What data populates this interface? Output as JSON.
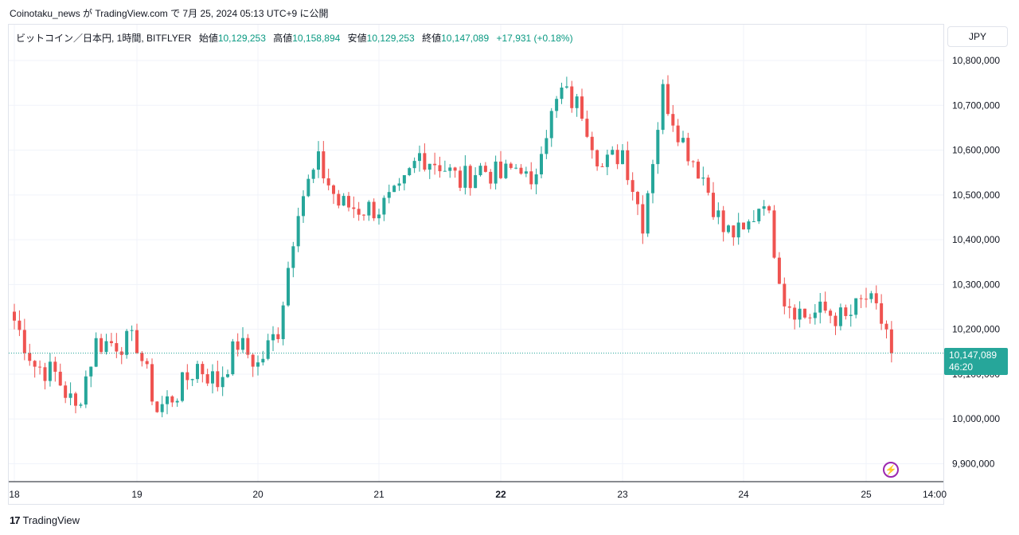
{
  "header": {
    "publish_line": "Coinotaku_news が TradingView.com で 7月 25, 2024 05:13 UTC+9 に公開"
  },
  "legend": {
    "symbol": "ビットコイン／日本円, 1時間, BITFLYER",
    "open_label": "始値",
    "open_value": "10,129,253",
    "high_label": "高値",
    "high_value": "10,158,894",
    "low_label": "安値",
    "low_value": "10,129,253",
    "close_label": "終値",
    "close_value": "10,147,089",
    "change": "+17,931 (+0.18%)"
  },
  "currency": "JPY",
  "last_price": {
    "value": "10,147,089",
    "countdown": "46:20"
  },
  "brand": {
    "name": "TradingView",
    "logo_text": "17"
  },
  "colors": {
    "up": "#26a69a",
    "down": "#ef5350",
    "grid": "#f0f3fa",
    "accent": "#9c27b0"
  },
  "icons": {
    "lightning": "lightning-icon"
  },
  "chart_data": {
    "type": "candlestick",
    "x_tick_labels": [
      "18",
      "19",
      "20",
      "21",
      "22",
      "23",
      "24",
      "25",
      "14:00"
    ],
    "y_tick_labels": [
      "9,900,000",
      "10,000,000",
      "10,100,000",
      "10,200,000",
      "10,300,000",
      "10,400,000",
      "10,500,000",
      "10,600,000",
      "10,700,000",
      "10,800,000"
    ],
    "ylim": [
      9860000,
      10880000
    ],
    "last_price": 10147089,
    "grid": true,
    "close_waypoints": [
      [
        "18 00:00",
        10220000
      ],
      [
        "18 04:00",
        10120000
      ],
      [
        "18 08:00",
        10100000
      ],
      [
        "18 12:00",
        10020000
      ],
      [
        "18 16:00",
        10170000
      ],
      [
        "18 20:00",
        10170000
      ],
      [
        "19 00:00",
        10170000
      ],
      [
        "19 04:00",
        10020000
      ],
      [
        "19 08:00",
        10060000
      ],
      [
        "19 12:00",
        10120000
      ],
      [
        "19 16:00",
        10080000
      ],
      [
        "19 20:00",
        10170000
      ],
      [
        "20 00:00",
        10120000
      ],
      [
        "20 04:00",
        10200000
      ],
      [
        "20 08:00",
        10480000
      ],
      [
        "20 12:00",
        10570000
      ],
      [
        "20 16:00",
        10480000
      ],
      [
        "20 20:00",
        10470000
      ],
      [
        "21 00:00",
        10470000
      ],
      [
        "21 04:00",
        10500000
      ],
      [
        "21 08:00",
        10590000
      ],
      [
        "21 12:00",
        10570000
      ],
      [
        "21 16:00",
        10530000
      ],
      [
        "21 20:00",
        10560000
      ],
      [
        "22 00:00",
        10540000
      ],
      [
        "22 04:00",
        10570000
      ],
      [
        "22 06:00",
        10500000
      ],
      [
        "22 08:00",
        10620000
      ],
      [
        "22 12:00",
        10730000
      ],
      [
        "22 16:00",
        10690000
      ],
      [
        "22 20:00",
        10560000
      ],
      [
        "23 00:00",
        10600000
      ],
      [
        "23 04:00",
        10440000
      ],
      [
        "23 08:00",
        10730000
      ],
      [
        "23 12:00",
        10620000
      ],
      [
        "23 16:00",
        10540000
      ],
      [
        "23 20:00",
        10420000
      ],
      [
        "24 00:00",
        10410000
      ],
      [
        "24 04:00",
        10500000
      ],
      [
        "24 08:00",
        10270000
      ],
      [
        "24 12:00",
        10230000
      ],
      [
        "24 16:00",
        10240000
      ],
      [
        "24 20:00",
        10220000
      ],
      [
        "25 00:00",
        10270000
      ],
      [
        "25 04:00",
        10200000
      ],
      [
        "25 05:00",
        10147089
      ]
    ]
  }
}
